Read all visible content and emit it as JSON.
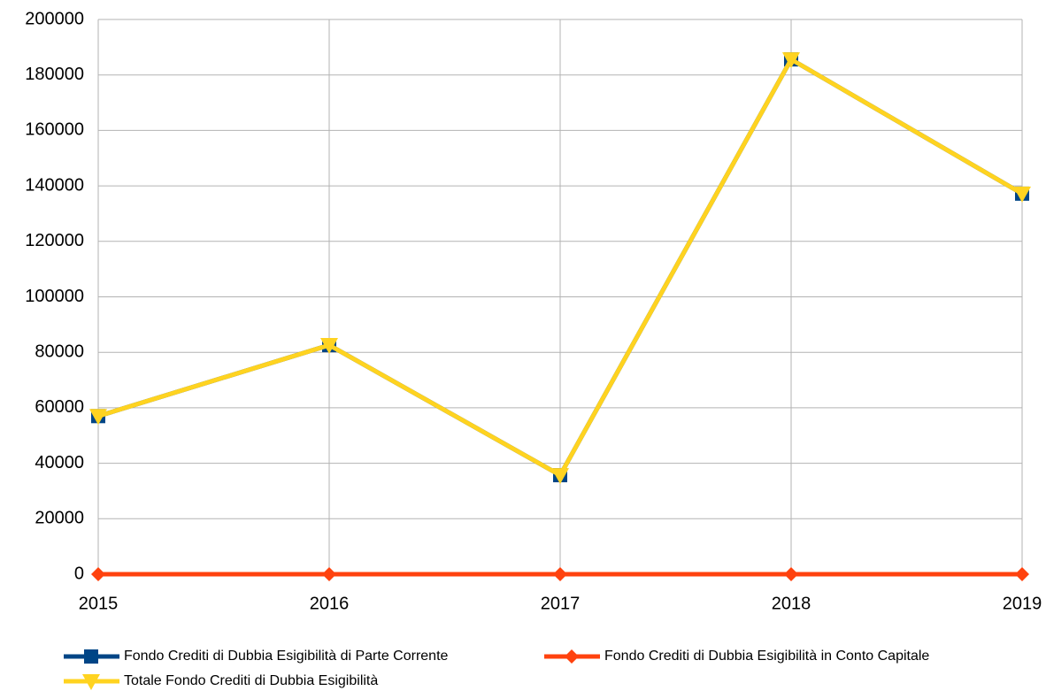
{
  "chart_data": {
    "type": "line",
    "x": [
      2015,
      2016,
      2017,
      2018,
      2019
    ],
    "xlim": [
      2015,
      2019
    ],
    "xticks": [
      2015,
      2016,
      2017,
      2018,
      2019
    ],
    "ylim": [
      0,
      200000
    ],
    "yticks": [
      0,
      20000,
      40000,
      60000,
      80000,
      100000,
      120000,
      140000,
      160000,
      180000,
      200000
    ],
    "grid": true,
    "legend": "bottom",
    "series": [
      {
        "name": "Fondo Crediti di Dubbia Esigibilità di Parte Corrente",
        "color": "#004586",
        "marker": "square",
        "values": [
          57000,
          82600,
          35700,
          185600,
          137200
        ]
      },
      {
        "name": "Fondo Crediti di Dubbia Esigibilità in Conto Capitale",
        "color": "#ff420e",
        "marker": "diamond",
        "values": [
          0,
          0,
          0,
          0,
          0
        ]
      },
      {
        "name": "Totale Fondo Crediti di Dubbia Esigibilità",
        "color": "#ffd320",
        "marker": "triangle",
        "values": [
          57000,
          82600,
          35700,
          185600,
          137200
        ]
      }
    ]
  }
}
